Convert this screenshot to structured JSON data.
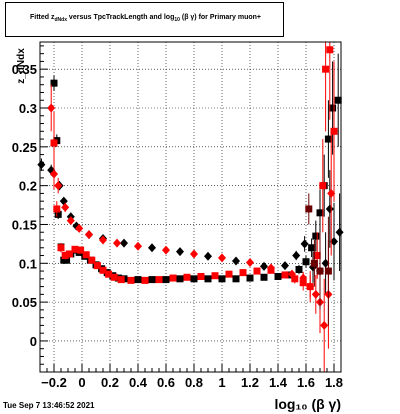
{
  "title": {
    "prefix": "Fitted  z",
    "sub1": "dNdx",
    "middle": "  versus TpcTrackLength and log",
    "sub2": "10",
    "suffix": "(β γ) for Primary muon+"
  },
  "timestamp": "Tue Sep  7 13:46:52 2021",
  "chart_data": {
    "type": "scatter",
    "title": "Fitted  z_dNdx  versus TpcTrackLength and log_10 (β γ) for Primary muon+",
    "xlabel": "log_10 (β γ)",
    "ylabel": "z_dNdx",
    "xlim": [
      -0.3,
      1.85
    ],
    "ylim": [
      -0.04,
      0.385
    ],
    "xticks": [
      -0.2,
      0,
      0.2,
      0.4,
      0.6,
      0.8,
      1,
      1.2,
      1.4,
      1.6,
      1.8
    ],
    "xtick_labels": [
      "−0.2",
      "0",
      "0.2",
      "0.4",
      "0.6",
      "0.8",
      "1",
      "1.2",
      "1.4",
      "1.6",
      "1.8"
    ],
    "yticks": [
      0,
      0.05,
      0.1,
      0.15,
      0.2,
      0.25,
      0.3,
      0.35
    ],
    "ytick_labels": [
      "0",
      "0.05",
      "0.1",
      "0.15",
      "0.2",
      "0.25",
      "0.3",
      "0.35"
    ],
    "grid": true,
    "colors": {
      "black": "#000000",
      "red": "#ff0000",
      "darkred": "#6b0000"
    },
    "series": [
      {
        "color": "black",
        "marker": "square",
        "points": [
          {
            "x": -0.2,
            "y": 0.332,
            "err": 0.01
          },
          {
            "x": -0.18,
            "y": 0.258,
            "err": 0.008
          },
          {
            "x": -0.17,
            "y": 0.163,
            "err": 0.006
          },
          {
            "x": -0.15,
            "y": 0.121,
            "err": 0.005
          },
          {
            "x": -0.13,
            "y": 0.104,
            "err": 0.005
          },
          {
            "x": -0.11,
            "y": 0.104,
            "err": 0.004
          },
          {
            "x": -0.08,
            "y": 0.112,
            "err": 0.004
          },
          {
            "x": -0.05,
            "y": 0.117,
            "err": 0.004
          },
          {
            "x": -0.02,
            "y": 0.114,
            "err": 0.003
          },
          {
            "x": 0.02,
            "y": 0.109,
            "err": 0.003
          },
          {
            "x": 0.06,
            "y": 0.104,
            "err": 0.003
          },
          {
            "x": 0.1,
            "y": 0.098,
            "err": 0.003
          },
          {
            "x": 0.14,
            "y": 0.093,
            "err": 0.003
          },
          {
            "x": 0.18,
            "y": 0.088,
            "err": 0.002
          },
          {
            "x": 0.22,
            "y": 0.084,
            "err": 0.002
          },
          {
            "x": 0.26,
            "y": 0.081,
            "err": 0.002
          },
          {
            "x": 0.3,
            "y": 0.08,
            "err": 0.002
          },
          {
            "x": 0.4,
            "y": 0.079,
            "err": 0.002
          },
          {
            "x": 0.5,
            "y": 0.079,
            "err": 0.002
          },
          {
            "x": 0.6,
            "y": 0.079,
            "err": 0.002
          },
          {
            "x": 0.7,
            "y": 0.08,
            "err": 0.002
          },
          {
            "x": 0.8,
            "y": 0.08,
            "err": 0.002
          },
          {
            "x": 0.9,
            "y": 0.08,
            "err": 0.002
          },
          {
            "x": 1.0,
            "y": 0.08,
            "err": 0.002
          },
          {
            "x": 1.1,
            "y": 0.08,
            "err": 0.002
          },
          {
            "x": 1.2,
            "y": 0.081,
            "err": 0.002
          },
          {
            "x": 1.3,
            "y": 0.082,
            "err": 0.003
          },
          {
            "x": 1.4,
            "y": 0.083,
            "err": 0.003
          },
          {
            "x": 1.48,
            "y": 0.085,
            "err": 0.004
          },
          {
            "x": 1.55,
            "y": 0.092,
            "err": 0.006
          },
          {
            "x": 1.6,
            "y": 0.102,
            "err": 0.008
          },
          {
            "x": 1.64,
            "y": 0.12,
            "err": 0.012
          },
          {
            "x": 1.67,
            "y": 0.135,
            "err": 0.02
          },
          {
            "x": 1.7,
            "y": 0.165,
            "err": 0.03
          },
          {
            "x": 1.73,
            "y": 0.2,
            "err": 0.04
          },
          {
            "x": 1.76,
            "y": 0.26,
            "err": 0.05
          },
          {
            "x": 1.79,
            "y": 0.3,
            "err": 0.06
          },
          {
            "x": 1.83,
            "y": 0.31,
            "err": 0.06
          }
        ]
      },
      {
        "color": "black",
        "marker": "diamond",
        "points": [
          {
            "x": -0.29,
            "y": 0.227,
            "err": 0.008
          },
          {
            "x": -0.22,
            "y": 0.22,
            "err": 0.007
          },
          {
            "x": -0.16,
            "y": 0.2,
            "err": 0.006
          },
          {
            "x": -0.13,
            "y": 0.18,
            "err": 0.005
          },
          {
            "x": -0.08,
            "y": 0.16,
            "err": 0.004
          },
          {
            "x": -0.04,
            "y": 0.148,
            "err": 0.004
          },
          {
            "x": 0.05,
            "y": 0.137,
            "err": 0.003
          },
          {
            "x": 0.15,
            "y": 0.132,
            "err": 0.003
          },
          {
            "x": 0.3,
            "y": 0.126,
            "err": 0.002
          },
          {
            "x": 0.5,
            "y": 0.12,
            "err": 0.002
          },
          {
            "x": 0.7,
            "y": 0.115,
            "err": 0.002
          },
          {
            "x": 0.9,
            "y": 0.109,
            "err": 0.002
          },
          {
            "x": 1.1,
            "y": 0.103,
            "err": 0.002
          },
          {
            "x": 1.3,
            "y": 0.096,
            "err": 0.003
          },
          {
            "x": 1.45,
            "y": 0.097,
            "err": 0.004
          },
          {
            "x": 1.53,
            "y": 0.11,
            "err": 0.006
          },
          {
            "x": 1.59,
            "y": 0.125,
            "err": 0.01
          },
          {
            "x": 1.65,
            "y": 0.095,
            "err": 0.02
          },
          {
            "x": 1.7,
            "y": 0.09,
            "err": 0.03
          },
          {
            "x": 1.74,
            "y": 0.1,
            "err": 0.04
          },
          {
            "x": 1.77,
            "y": 0.17,
            "err": 0.05
          },
          {
            "x": 1.8,
            "y": 0.128,
            "err": 0.05
          },
          {
            "x": 1.84,
            "y": 0.14,
            "err": 0.05
          }
        ]
      },
      {
        "color": "red",
        "marker": "square",
        "points": [
          {
            "x": -0.2,
            "y": 0.255,
            "err": 0.04
          },
          {
            "x": -0.18,
            "y": 0.17,
            "err": 0.01
          },
          {
            "x": -0.15,
            "y": 0.12,
            "err": 0.006
          },
          {
            "x": -0.12,
            "y": 0.11,
            "err": 0.005
          },
          {
            "x": -0.09,
            "y": 0.112,
            "err": 0.004
          },
          {
            "x": -0.05,
            "y": 0.118,
            "err": 0.004
          },
          {
            "x": -0.01,
            "y": 0.117,
            "err": 0.003
          },
          {
            "x": 0.03,
            "y": 0.111,
            "err": 0.003
          },
          {
            "x": 0.07,
            "y": 0.104,
            "err": 0.003
          },
          {
            "x": 0.11,
            "y": 0.097,
            "err": 0.003
          },
          {
            "x": 0.15,
            "y": 0.091,
            "err": 0.003
          },
          {
            "x": 0.19,
            "y": 0.086,
            "err": 0.002
          },
          {
            "x": 0.23,
            "y": 0.082,
            "err": 0.002
          },
          {
            "x": 0.28,
            "y": 0.079,
            "err": 0.002
          },
          {
            "x": 0.35,
            "y": 0.078,
            "err": 0.002
          },
          {
            "x": 0.45,
            "y": 0.078,
            "err": 0.002
          },
          {
            "x": 0.55,
            "y": 0.079,
            "err": 0.002
          },
          {
            "x": 0.65,
            "y": 0.081,
            "err": 0.002
          },
          {
            "x": 0.75,
            "y": 0.082,
            "err": 0.002
          },
          {
            "x": 0.85,
            "y": 0.083,
            "err": 0.002
          },
          {
            "x": 0.95,
            "y": 0.084,
            "err": 0.002
          },
          {
            "x": 1.05,
            "y": 0.086,
            "err": 0.002
          },
          {
            "x": 1.15,
            "y": 0.088,
            "err": 0.002
          },
          {
            "x": 1.25,
            "y": 0.09,
            "err": 0.003
          },
          {
            "x": 1.35,
            "y": 0.091,
            "err": 0.003
          },
          {
            "x": 1.45,
            "y": 0.085,
            "err": 0.004
          },
          {
            "x": 1.52,
            "y": 0.08,
            "err": 0.006
          },
          {
            "x": 1.58,
            "y": 0.075,
            "err": 0.01
          },
          {
            "x": 1.63,
            "y": 0.07,
            "err": 0.02
          },
          {
            "x": 1.68,
            "y": 0.11,
            "err": 0.03
          },
          {
            "x": 1.72,
            "y": 0.2,
            "err": 0.06
          },
          {
            "x": 1.74,
            "y": 0.35,
            "err": 0.08
          },
          {
            "x": 1.77,
            "y": 0.375,
            "err": 0.09
          },
          {
            "x": 1.8,
            "y": 0.27,
            "err": 0.09
          }
        ]
      },
      {
        "color": "red",
        "marker": "diamond",
        "points": [
          {
            "x": -0.22,
            "y": 0.3,
            "err": 0.03
          },
          {
            "x": -0.2,
            "y": 0.215,
            "err": 0.02
          },
          {
            "x": -0.17,
            "y": 0.2,
            "err": 0.01
          },
          {
            "x": -0.12,
            "y": 0.172,
            "err": 0.006
          },
          {
            "x": -0.08,
            "y": 0.155,
            "err": 0.005
          },
          {
            "x": -0.02,
            "y": 0.145,
            "err": 0.004
          },
          {
            "x": 0.05,
            "y": 0.137,
            "err": 0.003
          },
          {
            "x": 0.15,
            "y": 0.13,
            "err": 0.003
          },
          {
            "x": 0.25,
            "y": 0.126,
            "err": 0.002
          },
          {
            "x": 0.4,
            "y": 0.122,
            "err": 0.002
          },
          {
            "x": 0.6,
            "y": 0.117,
            "err": 0.002
          },
          {
            "x": 0.8,
            "y": 0.112,
            "err": 0.002
          },
          {
            "x": 1.0,
            "y": 0.107,
            "err": 0.002
          },
          {
            "x": 1.2,
            "y": 0.101,
            "err": 0.002
          },
          {
            "x": 1.35,
            "y": 0.094,
            "err": 0.003
          },
          {
            "x": 1.5,
            "y": 0.086,
            "err": 0.005
          },
          {
            "x": 1.58,
            "y": 0.081,
            "err": 0.008
          },
          {
            "x": 1.63,
            "y": 0.07,
            "err": 0.015
          },
          {
            "x": 1.67,
            "y": 0.06,
            "err": 0.025
          },
          {
            "x": 1.7,
            "y": 0.05,
            "err": 0.04
          },
          {
            "x": 1.73,
            "y": 0.02,
            "err": 0.06
          },
          {
            "x": 1.76,
            "y": 0.06,
            "err": 0.07
          },
          {
            "x": 1.78,
            "y": 0.19,
            "err": 0.08
          }
        ]
      },
      {
        "color": "darkred",
        "marker": "square",
        "points": [
          {
            "x": 1.62,
            "y": 0.17,
            "err": 0.02
          },
          {
            "x": 1.66,
            "y": 0.1,
            "err": 0.03
          },
          {
            "x": 1.7,
            "y": 0.09,
            "err": 0.05
          },
          {
            "x": 1.76,
            "y": 0.09,
            "err": 0.07
          }
        ]
      }
    ]
  }
}
